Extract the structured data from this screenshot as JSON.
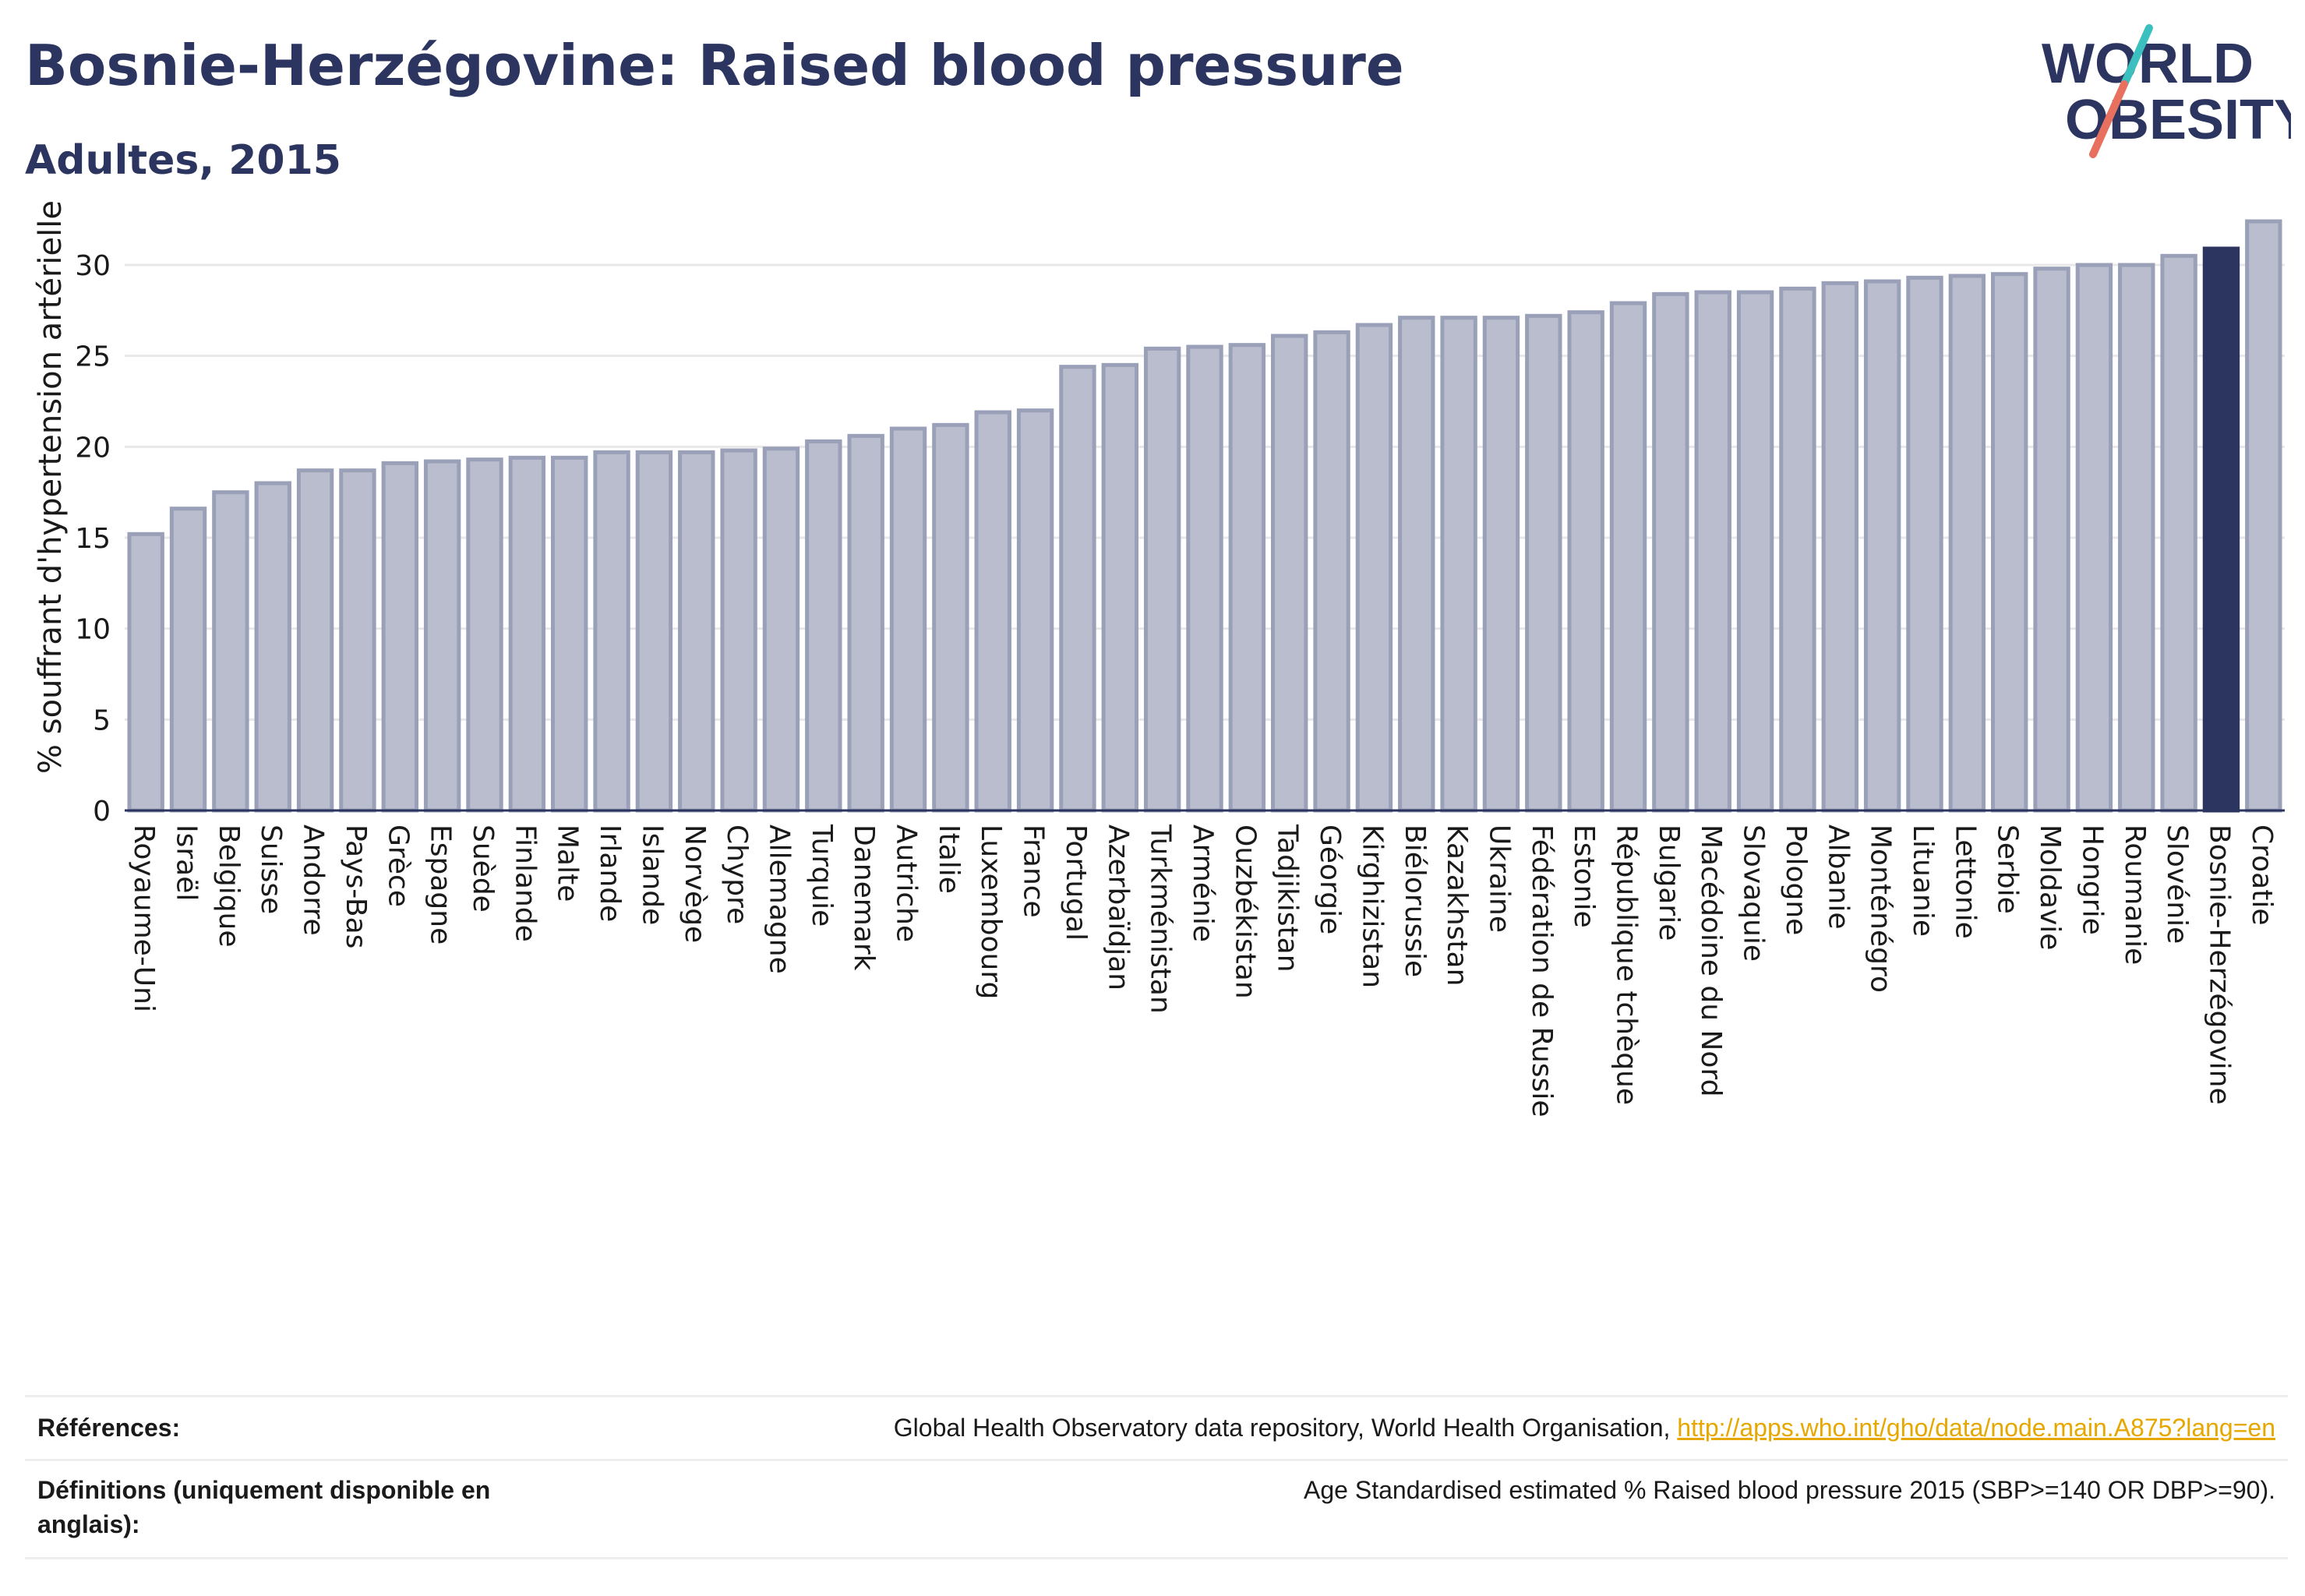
{
  "header": {
    "title": "Bosnie-Herzégovine: Raised blood pressure",
    "subtitle": "Adultes, 2015"
  },
  "logo": {
    "line1": "WORLD",
    "line2": "OBESITY",
    "text_color": "#2b3560",
    "stroke_teal": "#3bbfbf",
    "stroke_coral": "#e8705f"
  },
  "chart_data": {
    "type": "bar",
    "ylabel": "% souffrant d'hypertension artérielle",
    "ylim": [
      0,
      33
    ],
    "yticks": [
      0,
      5,
      10,
      15,
      20,
      25,
      30
    ],
    "grid": true,
    "highlight": "Bosnie-Herzégovine",
    "colors": {
      "bar": "#b9bdcd",
      "bar_border": "#9aa0b8",
      "highlight": "#2b3560",
      "axis": "#2b3560",
      "grid": "#e8e8e8"
    },
    "categories": [
      "Royaume-Uni",
      "Israël",
      "Belgique",
      "Suisse",
      "Andorre",
      "Pays-Bas",
      "Grèce",
      "Espagne",
      "Suède",
      "Finlande",
      "Malte",
      "Irlande",
      "Islande",
      "Norvège",
      "Chypre",
      "Allemagne",
      "Turquie",
      "Danemark",
      "Autriche",
      "Italie",
      "Luxembourg",
      "France",
      "Portugal",
      "Azerbaïdjan",
      "Turkménistan",
      "Arménie",
      "Ouzbékistan",
      "Tadjikistan",
      "Géorgie",
      "Kirghizistan",
      "Biélorussie",
      "Kazakhstan",
      "Ukraine",
      "Fédération de Russie",
      "Estonie",
      "République tchèque",
      "Bulgarie",
      "Macédoine du Nord",
      "Slovaquie",
      "Pologne",
      "Albanie",
      "Monténégro",
      "Lituanie",
      "Lettonie",
      "Serbie",
      "Moldavie",
      "Hongrie",
      "Roumanie",
      "Slovénie",
      "Bosnie-Herzégovine",
      "Croatie"
    ],
    "values": [
      15.2,
      16.6,
      17.5,
      18.0,
      18.7,
      18.7,
      19.1,
      19.2,
      19.3,
      19.4,
      19.4,
      19.7,
      19.7,
      19.7,
      19.8,
      19.9,
      20.3,
      20.6,
      21.0,
      21.2,
      21.9,
      22.0,
      24.4,
      24.5,
      25.4,
      25.5,
      25.6,
      26.1,
      26.3,
      26.7,
      27.1,
      27.1,
      27.1,
      27.2,
      27.4,
      27.9,
      28.4,
      28.5,
      28.5,
      28.7,
      29.0,
      29.1,
      29.3,
      29.4,
      29.5,
      29.8,
      30.0,
      30.0,
      30.5,
      30.9,
      32.4
    ]
  },
  "footer": {
    "references_label": "Références:",
    "references_text": "Global Health Observatory data repository, World Health Organisation, ",
    "references_link": "http://apps.who.int/gho/data/node.main.A875?lang=en",
    "definitions_label_line1": "Définitions (uniquement disponible en",
    "definitions_label_line2": "anglais):",
    "definitions_text": "Age Standardised estimated % Raised blood pressure 2015 (SBP>=140 OR DBP>=90)."
  }
}
